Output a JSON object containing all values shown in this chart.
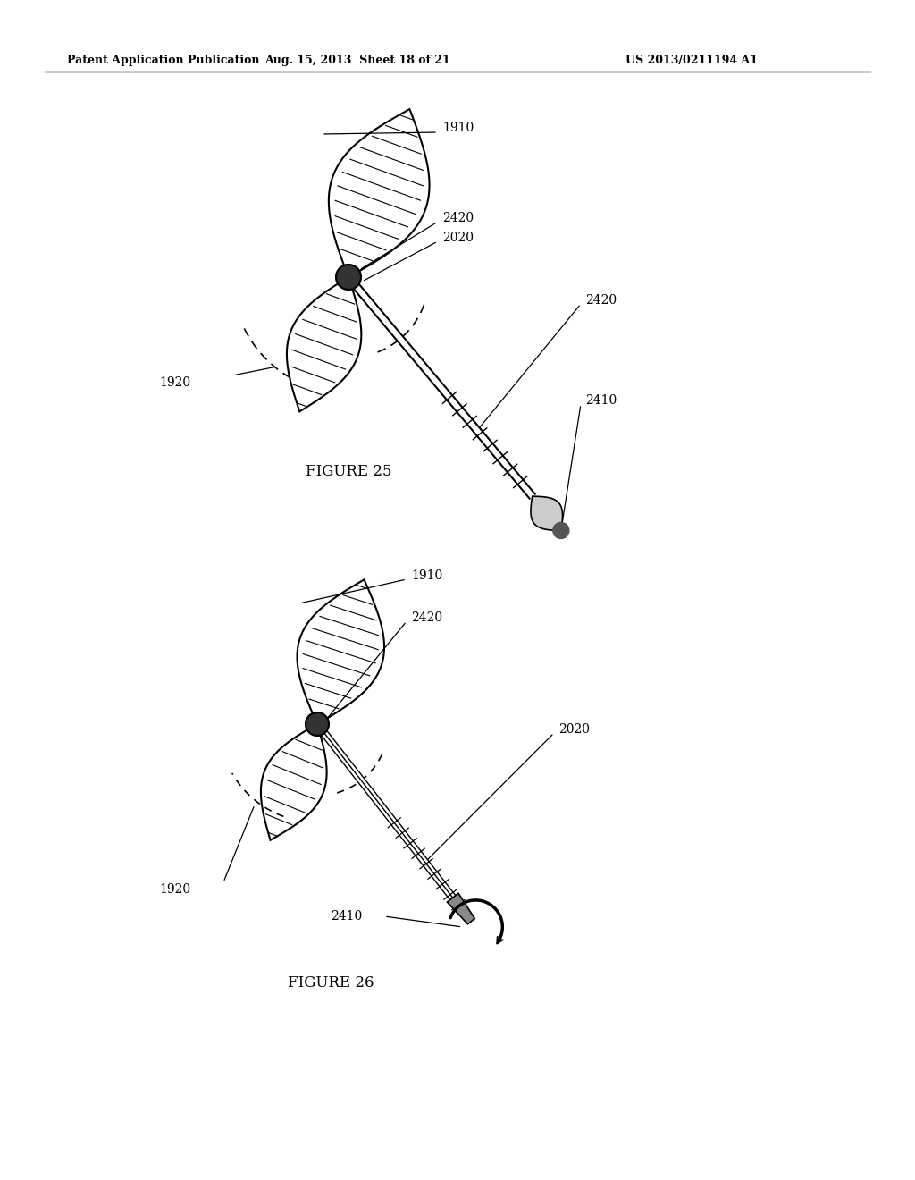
{
  "bg_color": "#ffffff",
  "header_left": "Patent Application Publication",
  "header_mid": "Aug. 15, 2013  Sheet 18 of 21",
  "header_right": "US 2013/0211194 A1",
  "fig25_label": "FIGURE 25",
  "fig26_label": "FIGURE 26"
}
